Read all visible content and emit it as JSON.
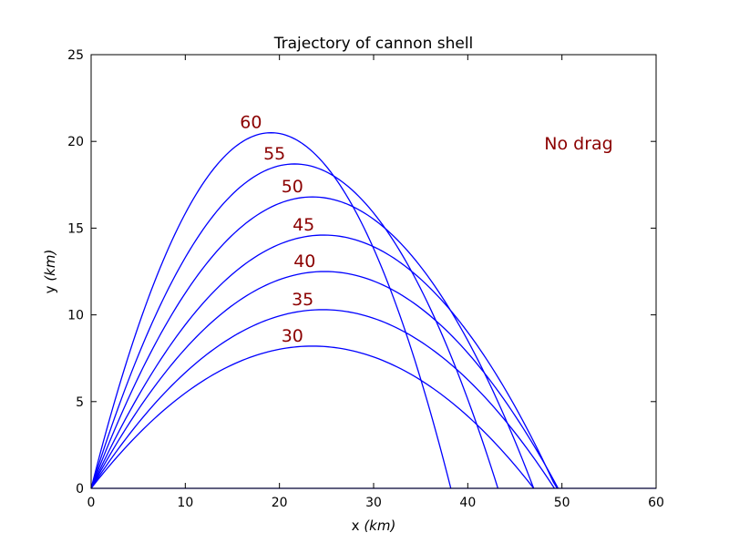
{
  "chart_data": {
    "type": "line",
    "title": "Trajectory of cannon shell",
    "xlabel_prefix": "x ",
    "xlabel_unit": "(km)",
    "ylabel_prefix": "y ",
    "ylabel_unit": "(km)",
    "xlim": [
      0,
      60
    ],
    "ylim": [
      0,
      25
    ],
    "xticks": [
      0,
      10,
      20,
      30,
      40,
      50,
      60
    ],
    "yticks": [
      0,
      5,
      10,
      15,
      20,
      25
    ],
    "grid": false,
    "annotation": "No drag",
    "line_color": "#0000ff",
    "label_color": "#8b0000",
    "series": [
      {
        "name": "30",
        "range": 47.0,
        "apex_x": 23.5,
        "apex_y": 8.2
      },
      {
        "name": "35",
        "range": 49.2,
        "apex_x": 24.6,
        "apex_y": 10.3
      },
      {
        "name": "40",
        "range": 49.6,
        "apex_x": 24.8,
        "apex_y": 12.5
      },
      {
        "name": "45",
        "range": 49.5,
        "apex_x": 24.7,
        "apex_y": 14.6
      },
      {
        "name": "50",
        "range": 47.0,
        "apex_x": 23.5,
        "apex_y": 16.8
      },
      {
        "name": "55",
        "range": 43.2,
        "apex_x": 21.6,
        "apex_y": 18.7
      },
      {
        "name": "60",
        "range": 38.2,
        "apex_x": 19.1,
        "apex_y": 20.5
      }
    ]
  }
}
